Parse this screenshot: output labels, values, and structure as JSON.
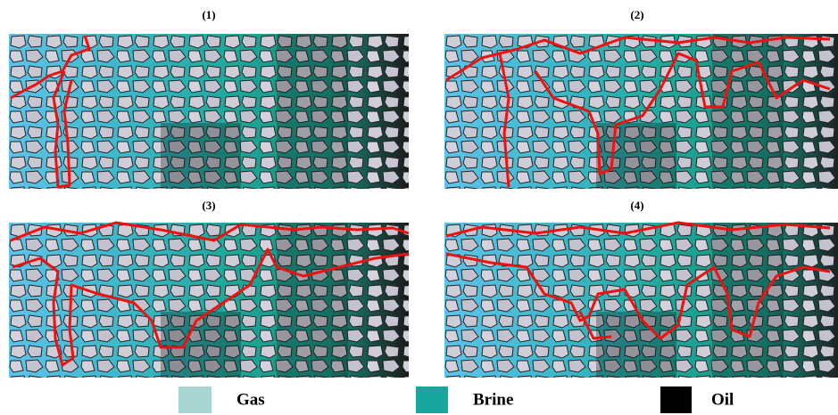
{
  "panels": [
    {
      "label": "(1)"
    },
    {
      "label": "(2)"
    },
    {
      "label": "(3)"
    },
    {
      "label": "(4)"
    }
  ],
  "legend": [
    {
      "label": "Gas"
    },
    {
      "label": "Brine"
    },
    {
      "label": "Oil"
    }
  ]
}
